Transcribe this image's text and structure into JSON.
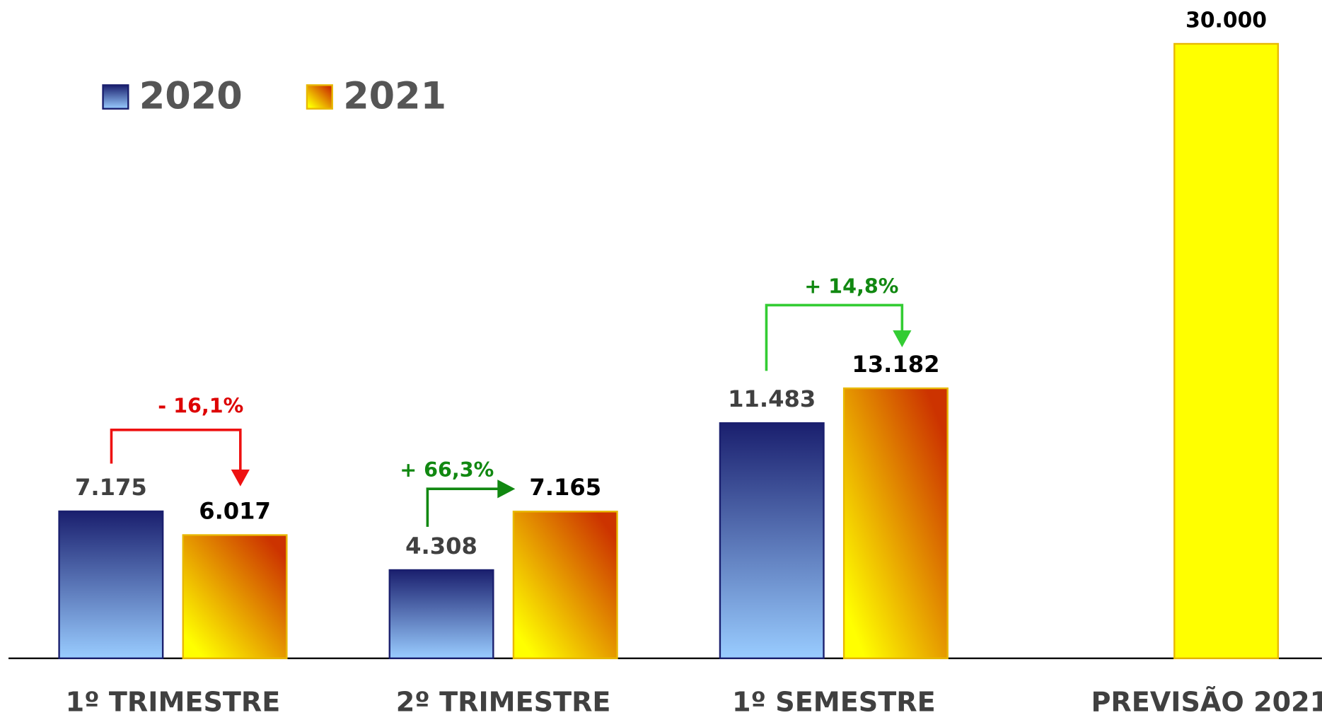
{
  "chart_data": {
    "type": "bar",
    "categories": [
      "1º TRIMESTRE",
      "2º TRIMESTRE",
      "1º SEMESTRE",
      "PREVISÃO 2021"
    ],
    "series": [
      {
        "name": "2020",
        "color": [
          "#1a1f6e",
          "#99ccff"
        ],
        "values": [
          7175,
          4308,
          11483,
          null
        ],
        "value_labels": [
          "7.175",
          "4.308",
          "11.483",
          null
        ]
      },
      {
        "name": "2021",
        "color": [
          "#ffff00",
          "#cc3300"
        ],
        "colors": [
          null,
          null,
          null,
          "#ffff00"
        ],
        "values": [
          6017,
          7165,
          13182,
          30000
        ],
        "value_labels": [
          "6.017",
          "7.165",
          "13.182",
          "30.000"
        ]
      }
    ],
    "ylim": [
      0,
      30000
    ],
    "annotations": [
      {
        "text": "- 16,1%",
        "color": "#dd0000"
      },
      {
        "text": "+ 66,3%",
        "color": "#118811"
      },
      {
        "text": "+ 14,8%",
        "color": "#118811"
      }
    ]
  }
}
